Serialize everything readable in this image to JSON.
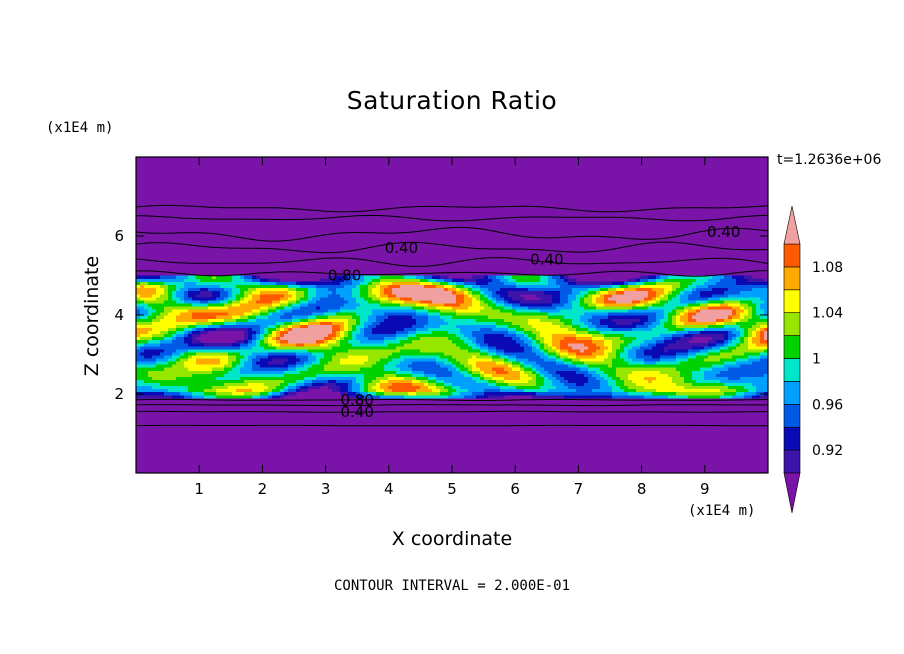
{
  "chart_data": {
    "type": "heatmap",
    "title": "Saturation Ratio",
    "xlabel": "X coordinate",
    "ylabel": "Z coordinate",
    "x_unit": "(x1E4 m)",
    "y_unit": "(x1E4 m)",
    "time_label": "t=1.2636e+06",
    "contour_interval_label": "CONTOUR INTERVAL = 2.000E-01",
    "xlim": [
      0,
      10
    ],
    "ylim": [
      0,
      8
    ],
    "x_ticks": [
      1,
      2,
      3,
      4,
      5,
      6,
      7,
      8,
      9
    ],
    "y_ticks": [
      2,
      4,
      6
    ],
    "contour_labels": [
      "0.40",
      "0.80"
    ],
    "colorbar": {
      "levels": [
        0.9,
        0.92,
        0.94,
        0.96,
        0.98,
        1.0,
        1.02,
        1.04,
        1.06,
        1.08,
        1.1
      ],
      "tick_labels": [
        {
          "value": 0.92,
          "text": "0.92"
        },
        {
          "value": 0.96,
          "text": "0.96"
        },
        {
          "value": 1.0,
          "text": "1"
        },
        {
          "value": 1.04,
          "text": "1.04"
        },
        {
          "value": 1.08,
          "text": "1.08"
        }
      ],
      "extend": "both",
      "colors": [
        "#7a14a8",
        "#3c14aa",
        "#0a0ab4",
        "#005ae6",
        "#00a0ff",
        "#00e6c8",
        "#00d200",
        "#96e600",
        "#ffff00",
        "#ffaa00",
        "#ff5a00",
        "#e61e28",
        "#f0a0a0"
      ]
    },
    "contours": [
      {
        "level": 0.4,
        "label": "0.40",
        "at": [
          4.2,
          5.7
        ]
      },
      {
        "level": 0.4,
        "label": "0.40",
        "at": [
          6.5,
          5.4
        ]
      },
      {
        "level": 0.4,
        "label": "0.40",
        "at": [
          9.3,
          6.1
        ]
      },
      {
        "level": 0.8,
        "label": "0.80",
        "at": [
          3.3,
          5.0
        ]
      },
      {
        "level": 0.8,
        "label": "0.80",
        "at": [
          3.5,
          1.85
        ]
      },
      {
        "level": 0.4,
        "label": "0.40",
        "at": [
          3.5,
          1.55
        ]
      }
    ]
  }
}
